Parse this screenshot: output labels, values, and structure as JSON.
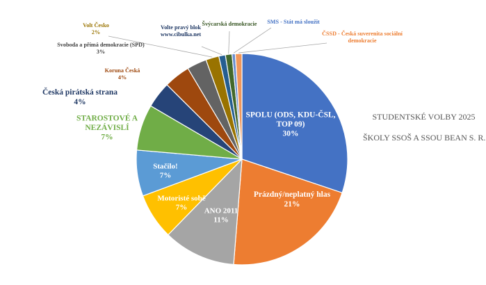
{
  "chart_data": {
    "type": "pie",
    "title": "",
    "slices": [
      {
        "label": "SPOLU (ODS, KDU-ČSL, TOP 09)",
        "value": 30,
        "value_label": "30%",
        "color": "#4472C4"
      },
      {
        "label": "Prázdný/neplatný hlas",
        "value": 21,
        "value_label": "21%",
        "color": "#ED7D31"
      },
      {
        "label": "ANO 2011",
        "value": 11,
        "value_label": "11%",
        "color": "#A5A5A5"
      },
      {
        "label": "Motoristé sobě",
        "value": 7,
        "value_label": "7%",
        "color": "#FFC000"
      },
      {
        "label": "Stačilo!",
        "value": 7,
        "value_label": "7%",
        "color": "#5B9BD5"
      },
      {
        "label": "STAROSTOVÉ A NEZÁVISLÍ",
        "value": 7,
        "value_label": "7%",
        "color": "#70AD47"
      },
      {
        "label": "Česká pirátská strana",
        "value": 4,
        "value_label": "4%",
        "color": "#264478"
      },
      {
        "label": "Koruna Česká",
        "value": 4,
        "value_label": "4%",
        "color": "#9E480E"
      },
      {
        "label": "Svoboda a přímá demokracie (SPD)",
        "value": 3,
        "value_label": "3%",
        "color": "#636363"
      },
      {
        "label": "Volt Česko",
        "value": 2,
        "value_label": "2%",
        "color": "#997300"
      },
      {
        "label": "Volte pravý blok www.cibulka.net",
        "value": 1,
        "value_label": "",
        "color": "#255E91"
      },
      {
        "label": "Švýcarská demokracie",
        "value": 1,
        "value_label": "",
        "color": "#43682B"
      },
      {
        "label": "SMS - Stát má sloužit",
        "value": 0.5,
        "value_label": "",
        "color": "#698ED0"
      },
      {
        "label": "ČSSD - Česká suverenita sociální demokracie",
        "value": 1,
        "value_label": "",
        "color": "#F1975A"
      }
    ]
  },
  "side_title": {
    "line1": "STUDENTSKÉ VOLBY 2025",
    "line2": "ŠKOLY SSOŠ A SSOU BEAN S. R. O."
  }
}
